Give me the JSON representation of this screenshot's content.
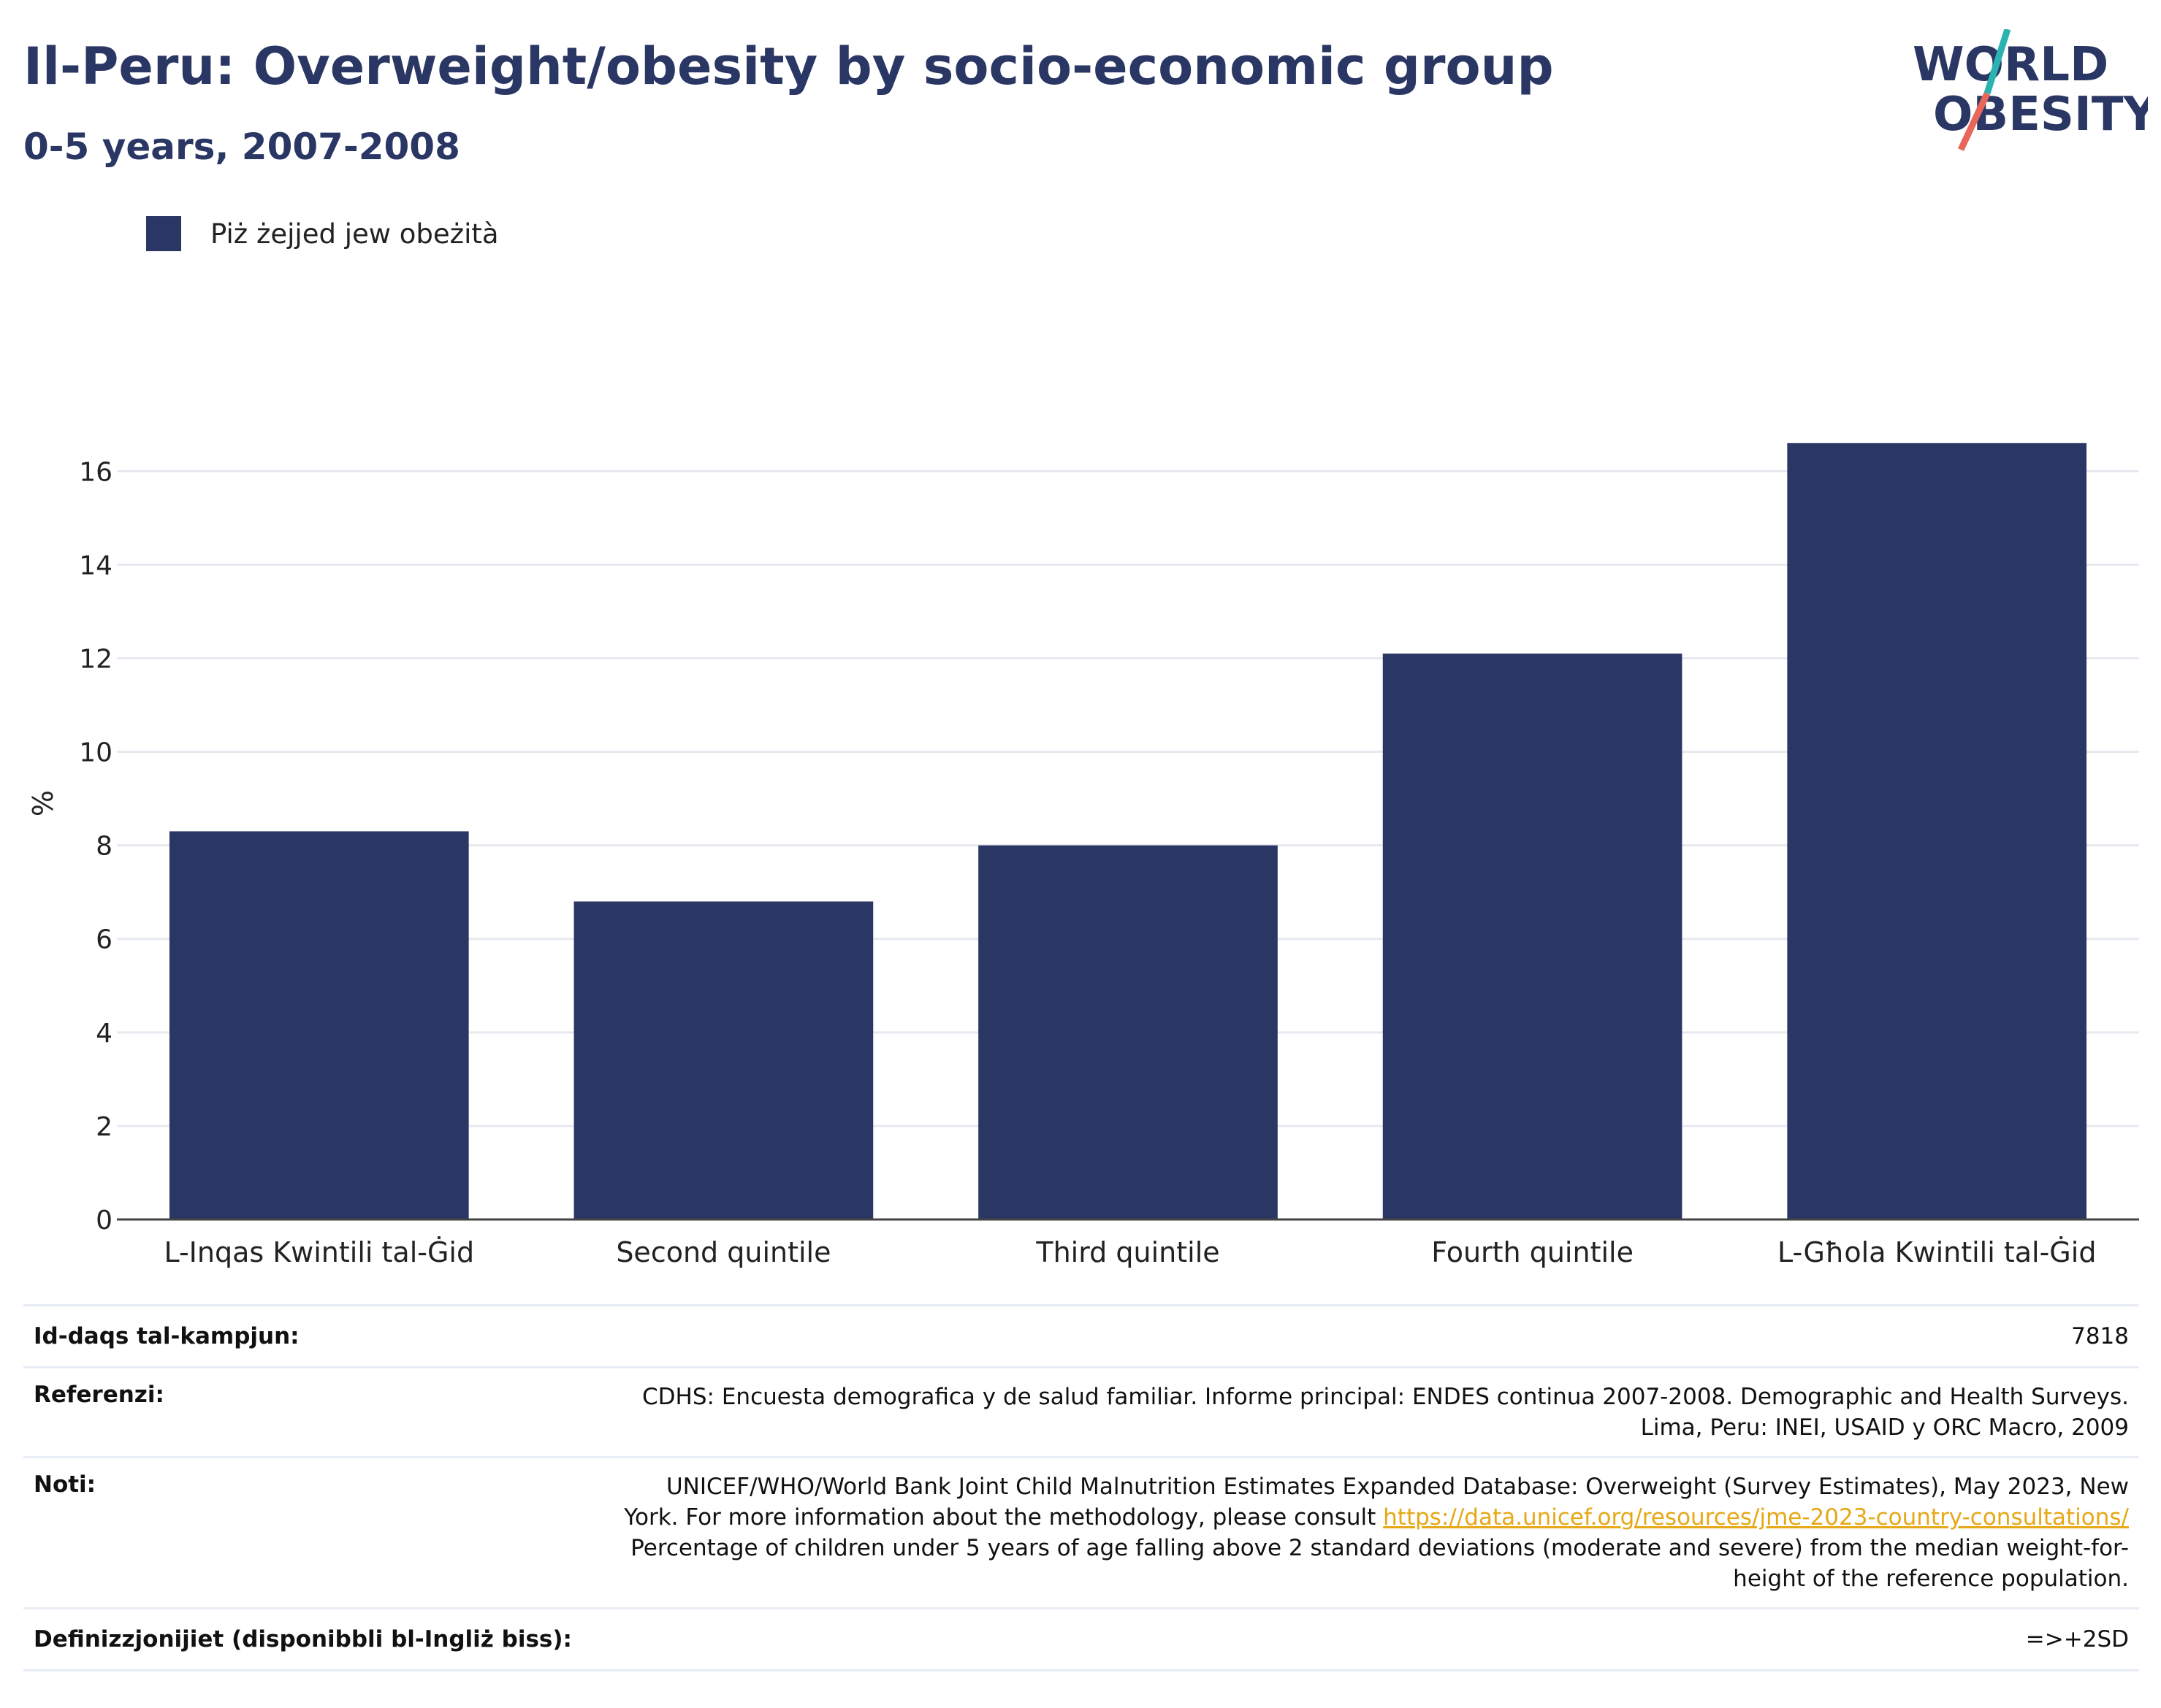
{
  "header": {
    "title": "Il-Peru: Overweight/obesity by socio-economic group",
    "subtitle": "0-5 years, 2007-2008"
  },
  "logo": {
    "line1": "WORLD",
    "line2": "OBESITY",
    "accent_teal": "#2bb3b1",
    "accent_red": "#e8675a",
    "text_color": "#2a3663"
  },
  "legend": {
    "label": "Piż żejjed jew obeżità",
    "color": "#2a3663"
  },
  "chart_data": {
    "type": "bar",
    "categories": [
      "L-Inqas Kwintili tal-Ġid",
      "Second quintile",
      "Third quintile",
      "Fourth quintile",
      "L-Għola Kwintili tal-Ġid"
    ],
    "series": [
      {
        "name": "Piż żejjed jew obeżità",
        "values": [
          8.3,
          6.8,
          8.0,
          12.1,
          16.6
        ]
      }
    ],
    "ylabel": "%",
    "ylim": [
      0,
      17.8
    ],
    "yticks": [
      0,
      2,
      4,
      6,
      8,
      10,
      12,
      14,
      16
    ],
    "grid": true,
    "legend_position": "top-left",
    "bar_color": "#2a3663"
  },
  "info": {
    "sample_size": {
      "label": "Id-daqs tal-kampjun:",
      "value": "7818"
    },
    "references": {
      "label": "Referenzi:",
      "line1": "CDHS: Encuesta demografica y de salud familiar. Informe principal: ENDES continua 2007-2008. Demographic and Health Surveys.",
      "line2": "Lima, Peru: INEI, USAID y ORC Macro, 2009"
    },
    "notes": {
      "label": "Noti:",
      "line1": "UNICEF/WHO/World Bank Joint Child Malnutrition Estimates Expanded Database: Overweight (Survey Estimates), May 2023, New",
      "line2_prefix": "York. For more information about the methodology, please consult ",
      "link": "https://data.unicef.org/resources/jme-2023-country-consultations/",
      "line3": "Percentage of children under 5 years of age falling above 2 standard deviations (moderate and severe) from the median weight-for-",
      "line4": "height of the reference population."
    },
    "definitions": {
      "label": "Definizzjonijiet (disponibbli bl-Ingliż biss):",
      "value": "=>+2SD"
    }
  }
}
